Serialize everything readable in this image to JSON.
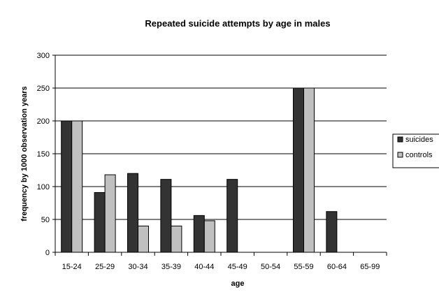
{
  "chart_data": {
    "type": "bar",
    "title": "Repeated suicide attempts by age in males",
    "xlabel": "age",
    "ylabel": "frequency by 1000 observation years",
    "categories": [
      "15-24",
      "25-29",
      "30-34",
      "35-39",
      "40-44",
      "45-49",
      "50-54",
      "55-59",
      "60-64",
      "65-99"
    ],
    "series": [
      {
        "name": "suicides",
        "color": "#333333",
        "values": [
          200,
          91,
          120,
          111,
          56,
          111,
          0,
          250,
          62,
          0
        ]
      },
      {
        "name": "controls",
        "color": "#c0c0c0",
        "values": [
          200,
          118,
          40,
          40,
          48,
          0,
          0,
          250,
          0,
          0
        ]
      }
    ],
    "ylim": [
      0,
      300
    ],
    "yticks": [
      0,
      50,
      100,
      150,
      200,
      250,
      300
    ],
    "grid": true,
    "legend_position": "right"
  }
}
